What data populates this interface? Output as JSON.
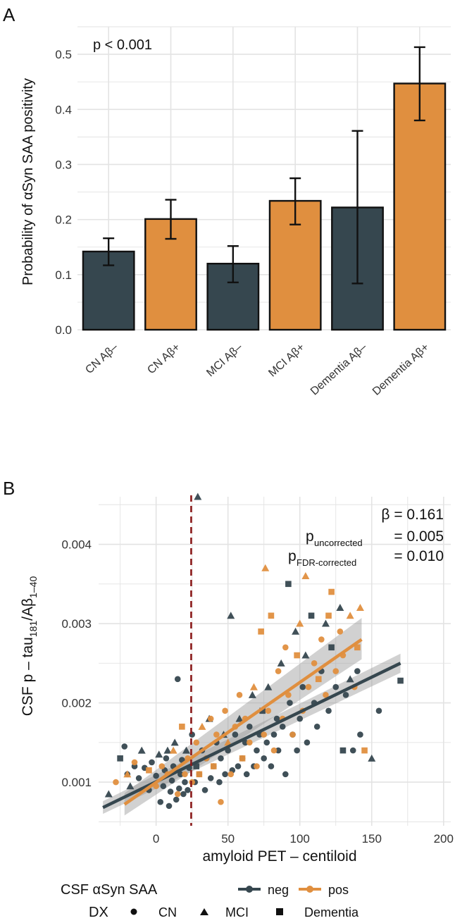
{
  "colors": {
    "neg": "#36474f",
    "pos": "#e08f3f",
    "grid": "#e3e3e3",
    "threshold": "#8b1a1a",
    "ci": "#9a9a9a"
  },
  "chart_data": [
    {
      "panel": "A",
      "type": "bar",
      "ylabel": "Probability of αSyn SAA positivity",
      "xlabel": "",
      "annotation": "p < 0.001",
      "ylim": [
        0,
        0.55
      ],
      "yticks": [
        0.0,
        0.1,
        0.2,
        0.3,
        0.4,
        0.5
      ],
      "ytick_labels": [
        "0.0",
        "0.1",
        "0.2",
        "0.3",
        "0.4",
        "0.5"
      ],
      "categories": [
        "CN Aβ–",
        "CN Aβ+",
        "MCI Aβ–",
        "MCI Aβ+",
        "Dementia Aβ–",
        "Dementia Aβ+"
      ],
      "values": [
        0.142,
        0.201,
        0.12,
        0.234,
        0.222,
        0.447
      ],
      "ci_low": [
        0.117,
        0.165,
        0.086,
        0.191,
        0.084,
        0.38
      ],
      "ci_high": [
        0.166,
        0.236,
        0.152,
        0.275,
        0.361,
        0.513
      ],
      "groups": [
        "neg",
        "pos",
        "neg",
        "pos",
        "neg",
        "pos"
      ]
    },
    {
      "panel": "B",
      "type": "scatter",
      "title_lines": [
        "β = 0.161",
        "= 0.005",
        "= 0.010"
      ],
      "p_labels": [
        {
          "main": "p",
          "sub": "uncorrected"
        },
        {
          "main": "p",
          "sub": "FDR-corrected"
        }
      ],
      "xlabel": "amyloid PET – centiloid",
      "ylabel": {
        "a": "CSF p – tau",
        "sub1": "181",
        "b": "/Aβ",
        "sub2": "1–40"
      },
      "xlim": [
        -40,
        205
      ],
      "ylim": [
        0.00045,
        0.0046
      ],
      "xticks": [
        0,
        50,
        100,
        150,
        200
      ],
      "xtick_labels": [
        "0",
        "50",
        "100",
        "150",
        "200"
      ],
      "yticks": [
        0.001,
        0.002,
        0.003,
        0.004
      ],
      "ytick_labels": [
        "0.001",
        "0.002",
        "0.003",
        "0.004"
      ],
      "threshold_x": 24.4,
      "fits": [
        {
          "name": "neg",
          "x": [
            -37,
            170
          ],
          "y": [
            0.00068,
            0.0025
          ],
          "ci_low": [
            0.0006,
            0.00238
          ],
          "ci_high": [
            0.00076,
            0.00262
          ]
        },
        {
          "name": "pos",
          "x": [
            -22,
            143
          ],
          "y": [
            0.00072,
            0.0028
          ],
          "ci_low": [
            0.00058,
            0.00255
          ],
          "ci_high": [
            0.00086,
            0.00307
          ]
        }
      ],
      "legend": {
        "saa_title": "CSF αSyn SAA",
        "saa_items": [
          "neg",
          "pos"
        ],
        "dx_title": "DX",
        "dx_items": [
          "CN",
          "MCI",
          "Dementia"
        ]
      },
      "series": [
        {
          "name": "neg",
          "points": [
            [
              -33,
              0.00085,
              "t"
            ],
            [
              -25,
              0.0013,
              "s"
            ],
            [
              -22,
              0.00145,
              "c"
            ],
            [
              -20,
              0.0011,
              "c"
            ],
            [
              -18,
              0.00095,
              "t"
            ],
            [
              -15,
              0.0012,
              "c"
            ],
            [
              -12,
              0.00105,
              "c"
            ],
            [
              -10,
              0.0014,
              "t"
            ],
            [
              -8,
              0.00118,
              "c"
            ],
            [
              -5,
              0.0009,
              "c"
            ],
            [
              -3,
              0.00125,
              "c"
            ],
            [
              0,
              0.00108,
              "c"
            ],
            [
              2,
              0.00135,
              "t"
            ],
            [
              3,
              0.00075,
              "c"
            ],
            [
              5,
              0.00095,
              "c"
            ],
            [
              6,
              0.00115,
              "c"
            ],
            [
              7,
              0.0013,
              "c"
            ],
            [
              8,
              0.0014,
              "t"
            ],
            [
              9,
              0.0007,
              "c"
            ],
            [
              10,
              0.00088,
              "c"
            ],
            [
              11,
              0.00102,
              "c"
            ],
            [
              12,
              0.0012,
              "c"
            ],
            [
              13,
              0.0015,
              "t"
            ],
            [
              14,
              0.00078,
              "c"
            ],
            [
              15,
              0.0023,
              "c"
            ],
            [
              16,
              0.00092,
              "c"
            ],
            [
              17,
              0.0011,
              "c"
            ],
            [
              18,
              0.00128,
              "c"
            ],
            [
              19,
              0.00085,
              "c"
            ],
            [
              20,
              0.001,
              "c"
            ],
            [
              21,
              0.0014,
              "t"
            ],
            [
              22,
              0.0009,
              "c"
            ],
            [
              23,
              0.00118,
              "c"
            ],
            [
              25,
              0.0016,
              "c"
            ],
            [
              27,
              0.001,
              "c"
            ],
            [
              28,
              0.0012,
              "s"
            ],
            [
              29,
              0.0046,
              "t"
            ],
            [
              30,
              0.0011,
              "c"
            ],
            [
              32,
              0.0014,
              "c"
            ],
            [
              34,
              0.0009,
              "c"
            ],
            [
              35,
              0.0013,
              "c"
            ],
            [
              37,
              0.0018,
              "t"
            ],
            [
              38,
              0.00105,
              "c"
            ],
            [
              40,
              0.0012,
              "c"
            ],
            [
              42,
              0.0015,
              "c"
            ],
            [
              44,
              0.001,
              "c"
            ],
            [
              45,
              0.0013,
              "c"
            ],
            [
              47,
              0.0016,
              "t"
            ],
            [
              48,
              0.0011,
              "c"
            ],
            [
              50,
              0.0014,
              "c"
            ],
            [
              52,
              0.0031,
              "t"
            ],
            [
              53,
              0.00115,
              "c"
            ],
            [
              55,
              0.0016,
              "c"
            ],
            [
              57,
              0.0012,
              "c"
            ],
            [
              58,
              0.0018,
              "t"
            ],
            [
              60,
              0.0013,
              "c"
            ],
            [
              62,
              0.0015,
              "c"
            ],
            [
              63,
              0.0011,
              "c"
            ],
            [
              65,
              0.0017,
              "c"
            ],
            [
              67,
              0.0021,
              "t"
            ],
            [
              68,
              0.0012,
              "c"
            ],
            [
              70,
              0.0014,
              "c"
            ],
            [
              72,
              0.0016,
              "c"
            ],
            [
              74,
              0.0019,
              "s"
            ],
            [
              75,
              0.0013,
              "c"
            ],
            [
              77,
              0.0015,
              "c"
            ],
            [
              78,
              0.0022,
              "t"
            ],
            [
              80,
              0.0012,
              "c"
            ],
            [
              82,
              0.0016,
              "c"
            ],
            [
              84,
              0.0018,
              "c"
            ],
            [
              85,
              0.0014,
              "c"
            ],
            [
              87,
              0.0025,
              "t"
            ],
            [
              88,
              0.0017,
              "c"
            ],
            [
              90,
              0.0011,
              "c"
            ],
            [
              92,
              0.0035,
              "s"
            ],
            [
              93,
              0.002,
              "c"
            ],
            [
              95,
              0.0016,
              "c"
            ],
            [
              97,
              0.0029,
              "t"
            ],
            [
              98,
              0.0014,
              "c"
            ],
            [
              100,
              0.0018,
              "c"
            ],
            [
              102,
              0.0022,
              "c"
            ],
            [
              104,
              0.0026,
              "t"
            ],
            [
              105,
              0.0015,
              "c"
            ],
            [
              108,
              0.0031,
              "s"
            ],
            [
              110,
              0.002,
              "c"
            ],
            [
              112,
              0.0017,
              "c"
            ],
            [
              115,
              0.0024,
              "c"
            ],
            [
              118,
              0.003,
              "t"
            ],
            [
              120,
              0.0019,
              "c"
            ],
            [
              122,
              0.0027,
              "s"
            ],
            [
              125,
              0.0022,
              "c"
            ],
            [
              128,
              0.0032,
              "t"
            ],
            [
              130,
              0.0014,
              "s"
            ],
            [
              132,
              0.0021,
              "c"
            ],
            [
              135,
              0.0023,
              "t"
            ],
            [
              137,
              0.0014,
              "c"
            ],
            [
              140,
              0.0024,
              "c"
            ],
            [
              142,
              0.0016,
              "c"
            ],
            [
              150,
              0.0013,
              "t"
            ],
            [
              155,
              0.0019,
              "c"
            ],
            [
              170,
              0.00228,
              "s"
            ]
          ]
        },
        {
          "name": "pos",
          "points": [
            [
              -28,
              0.001,
              "c"
            ],
            [
              -20,
              0.0011,
              "t"
            ],
            [
              -15,
              0.00125,
              "c"
            ],
            [
              -10,
              0.0009,
              "c"
            ],
            [
              -5,
              0.00115,
              "s"
            ],
            [
              0,
              0.00095,
              "c"
            ],
            [
              4,
              0.0012,
              "c"
            ],
            [
              8,
              0.0011,
              "c"
            ],
            [
              12,
              0.0014,
              "t"
            ],
            [
              15,
              0.00085,
              "c"
            ],
            [
              18,
              0.0017,
              "s"
            ],
            [
              20,
              0.0011,
              "c"
            ],
            [
              22,
              0.0013,
              "c"
            ],
            [
              25,
              0.001,
              "c"
            ],
            [
              28,
              0.0015,
              "c"
            ],
            [
              30,
              0.0011,
              "s"
            ],
            [
              32,
              0.0017,
              "t"
            ],
            [
              35,
              0.0013,
              "c"
            ],
            [
              38,
              0.0018,
              "c"
            ],
            [
              40,
              0.0012,
              "s"
            ],
            [
              42,
              0.0016,
              "c"
            ],
            [
              45,
              0.00075,
              "c"
            ],
            [
              48,
              0.0019,
              "c"
            ],
            [
              50,
              0.0015,
              "t"
            ],
            [
              52,
              0.0011,
              "c"
            ],
            [
              55,
              0.0017,
              "c"
            ],
            [
              58,
              0.0021,
              "c"
            ],
            [
              60,
              0.0013,
              "s"
            ],
            [
              62,
              0.0018,
              "c"
            ],
            [
              65,
              0.0015,
              "c"
            ],
            [
              68,
              0.0022,
              "t"
            ],
            [
              70,
              0.0012,
              "c"
            ],
            [
              73,
              0.0029,
              "s"
            ],
            [
              75,
              0.0016,
              "c"
            ],
            [
              76,
              0.0037,
              "t"
            ],
            [
              78,
              0.0019,
              "c"
            ],
            [
              80,
              0.0031,
              "s"
            ],
            [
              82,
              0.0014,
              "c"
            ],
            [
              85,
              0.0024,
              "c"
            ],
            [
              88,
              0.0018,
              "c"
            ],
            [
              90,
              0.0027,
              "c"
            ],
            [
              92,
              0.0021,
              "c"
            ],
            [
              95,
              0.0016,
              "c"
            ],
            [
              98,
              0.0026,
              "s"
            ],
            [
              100,
              0.003,
              "t"
            ],
            [
              102,
              0.0019,
              "c"
            ],
            [
              104,
              0.0036,
              "t"
            ],
            [
              106,
              0.0022,
              "c"
            ],
            [
              110,
              0.0025,
              "c"
            ],
            [
              113,
              0.0023,
              "s"
            ],
            [
              115,
              0.0028,
              "c"
            ],
            [
              118,
              0.0021,
              "c"
            ],
            [
              120,
              0.0031,
              "s"
            ],
            [
              122,
              0.0034,
              "s"
            ],
            [
              125,
              0.0024,
              "c"
            ],
            [
              128,
              0.0029,
              "c"
            ],
            [
              130,
              0.0026,
              "c"
            ],
            [
              135,
              0.0031,
              "t"
            ],
            [
              138,
              0.0022,
              "c"
            ],
            [
              140,
              0.0027,
              "s"
            ],
            [
              142,
              0.0032,
              "t"
            ],
            [
              145,
              0.0014,
              "s"
            ]
          ]
        }
      ]
    }
  ],
  "panel_labels": [
    "A",
    "B"
  ]
}
